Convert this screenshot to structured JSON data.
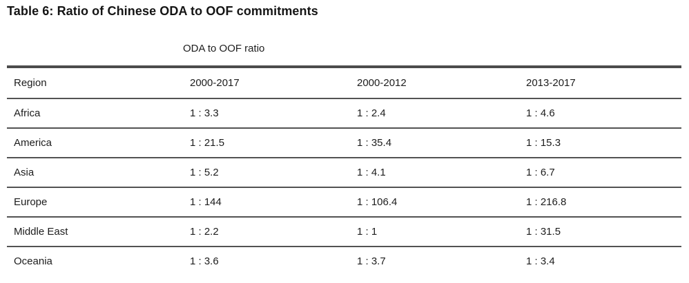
{
  "title": "Table 6: Ratio of Chinese ODA to OOF commitments",
  "table": {
    "group_header": "ODA to OOF ratio",
    "columns": [
      "Region",
      "2000-2017",
      "2000-2012",
      "2013-2017"
    ],
    "rows": [
      {
        "region": "Africa",
        "values": [
          "1 : 3.3",
          "1 : 2.4",
          "1 : 4.6"
        ]
      },
      {
        "region": "America",
        "values": [
          "1 : 21.5",
          "1 : 35.4",
          "1 : 15.3"
        ]
      },
      {
        "region": "Asia",
        "values": [
          "1 : 5.2",
          "1 : 4.1",
          "1 : 6.7"
        ]
      },
      {
        "region": "Europe",
        "values": [
          "1 : 144",
          "1 : 106.4",
          "1 : 216.8"
        ]
      },
      {
        "region": "Middle East",
        "values": [
          "1 : 2.2",
          "1 : 1",
          "1 : 31.5"
        ]
      },
      {
        "region": "Oceania",
        "values": [
          "1 : 3.6",
          "1 : 3.7",
          "1 : 3.4"
        ]
      }
    ]
  },
  "colors": {
    "text": "#1c1c1c",
    "rule": "#525252",
    "background": "#ffffff"
  }
}
